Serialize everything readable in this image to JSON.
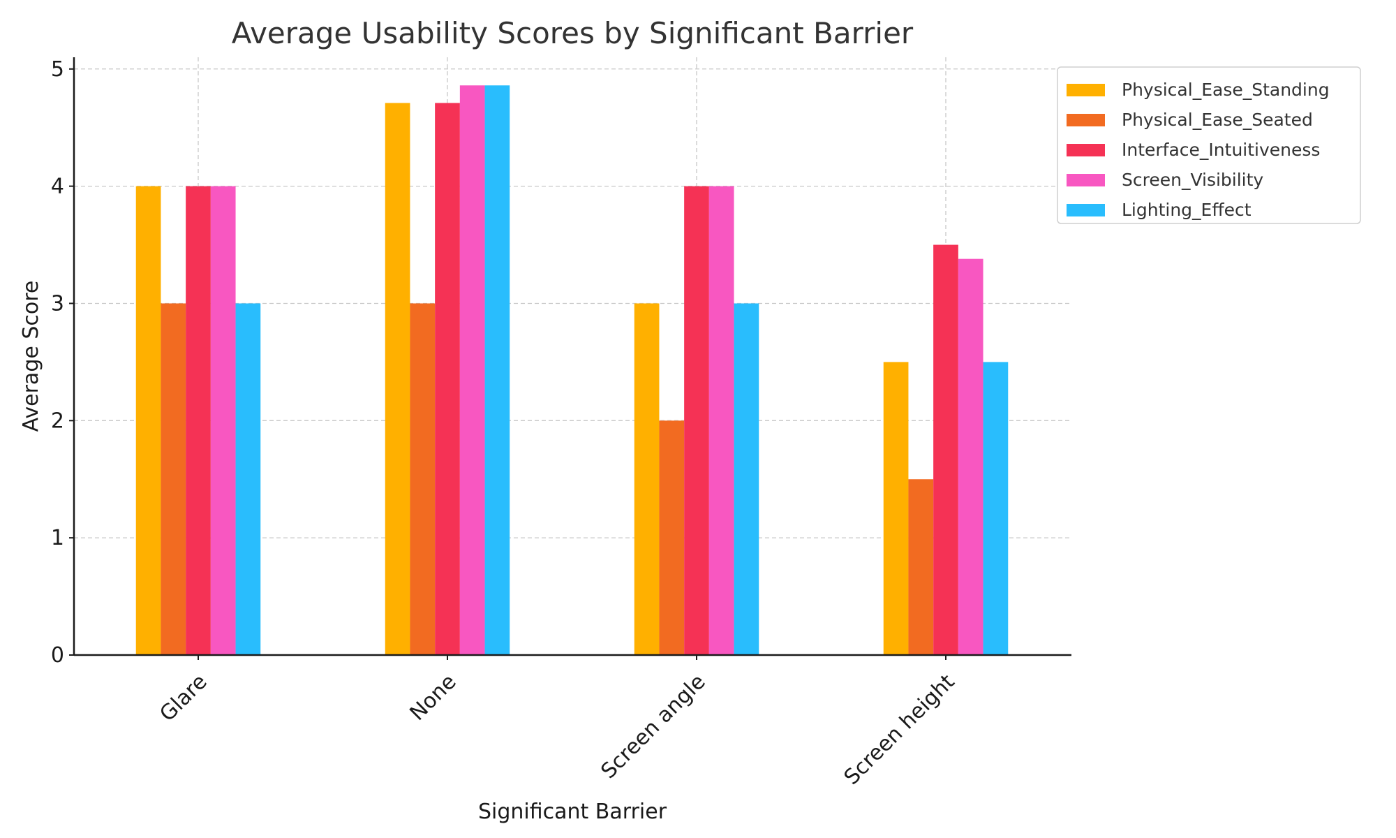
{
  "chart_data": {
    "type": "bar",
    "title": "Average Usability Scores by Significant Barrier",
    "xlabel": "Significant Barrier",
    "ylabel": "Average Score",
    "categories": [
      "Glare",
      "None",
      "Screen angle",
      "Screen height"
    ],
    "ylim": [
      0,
      5.1
    ],
    "yticks": [
      0,
      1,
      2,
      3,
      4,
      5
    ],
    "grid": true,
    "legend_position": "top-right outside",
    "series": [
      {
        "name": "Physical_Ease_Standing",
        "color": "#FFB000",
        "values": [
          4.0,
          4.71,
          3.0,
          2.5
        ]
      },
      {
        "name": "Physical_Ease_Seated",
        "color": "#F26B21",
        "values": [
          3.0,
          3.0,
          2.0,
          1.5
        ]
      },
      {
        "name": "Interface_Intuitiveness",
        "color": "#F53255",
        "values": [
          4.0,
          4.71,
          4.0,
          3.5
        ]
      },
      {
        "name": "Screen_Visibility",
        "color": "#F857C1",
        "values": [
          4.0,
          4.86,
          4.0,
          3.38
        ]
      },
      {
        "name": "Lighting_Effect",
        "color": "#29BDFD",
        "values": [
          3.0,
          4.86,
          3.0,
          2.5
        ]
      }
    ]
  }
}
